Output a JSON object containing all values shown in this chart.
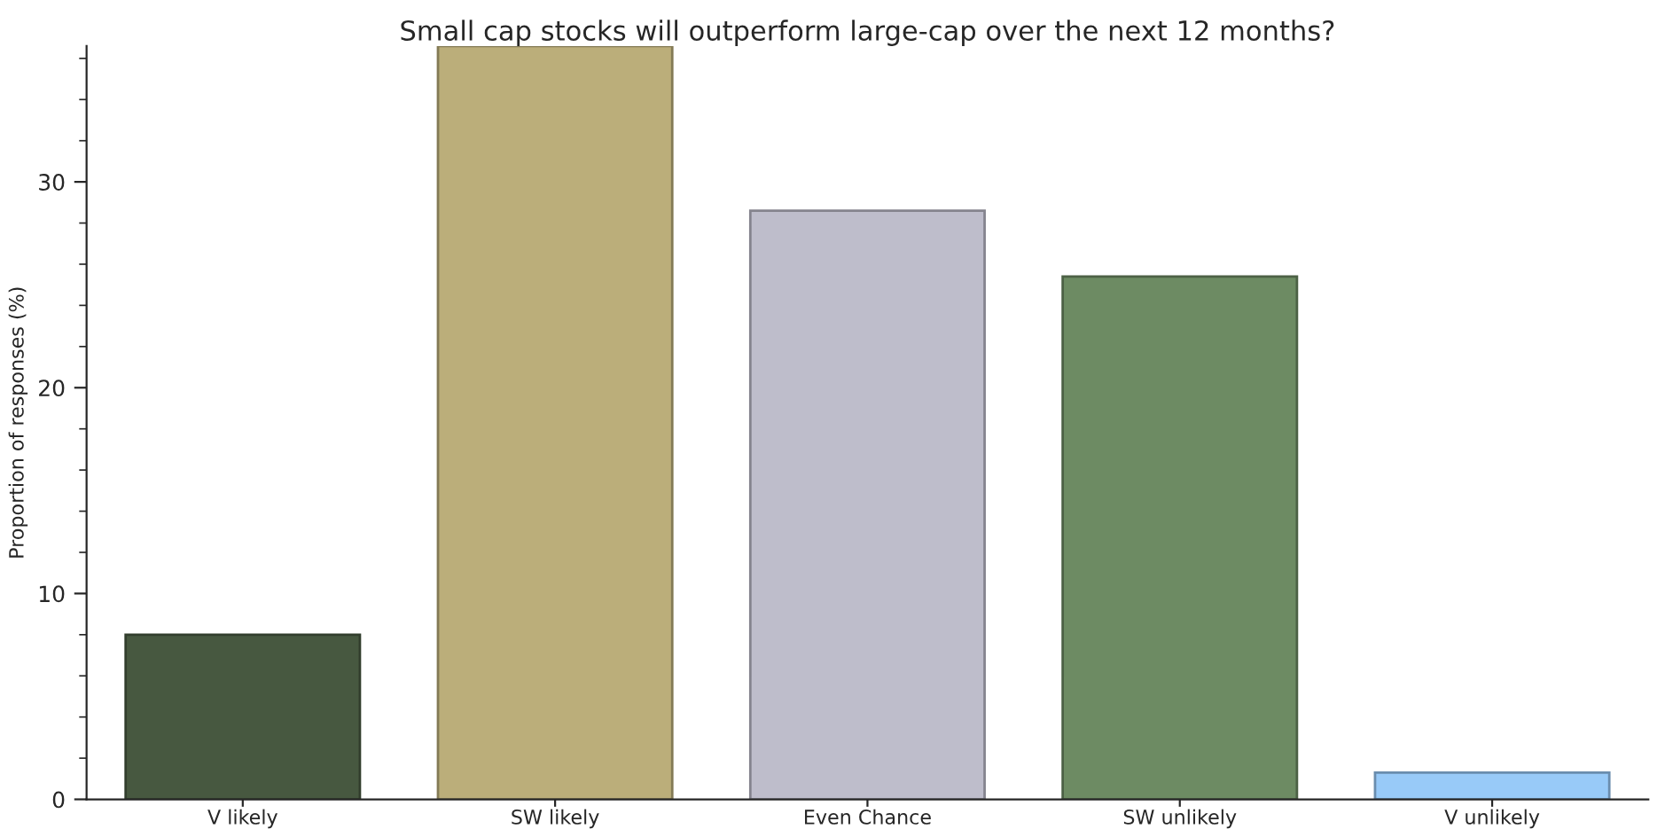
{
  "chart_data": {
    "type": "bar",
    "title": "Small cap stocks will outperform large-cap over the next 12 months?",
    "ylabel": "Proportion of responses (%)",
    "categories": [
      "V likely",
      "SW likely",
      "Even Chance",
      "SW unlikely",
      "V unlikely"
    ],
    "values": [
      8.0,
      36.6,
      28.6,
      25.4,
      1.3
    ],
    "colors": [
      "#475840",
      "#bbae7a",
      "#bebdcb",
      "#6d8b63",
      "#98caf8"
    ],
    "ylim": [
      0,
      36.6
    ],
    "yticks": [
      0,
      {
        "value": 2,
        "label": null
      },
      {
        "value": 4,
        "label": null
      },
      {
        "value": 6,
        "label": null
      },
      {
        "value": 8,
        "label": null
      },
      10,
      {
        "value": 12,
        "label": null
      },
      {
        "value": 14,
        "label": null
      },
      {
        "value": 16,
        "label": null
      },
      {
        "value": 18,
        "label": null
      },
      20,
      {
        "value": 22,
        "label": null
      },
      {
        "value": 24,
        "label": null
      },
      {
        "value": 26,
        "label": null
      },
      {
        "value": 28,
        "label": null
      },
      30,
      {
        "value": 32,
        "label": null
      },
      {
        "value": 34,
        "label": null
      },
      {
        "value": 36,
        "label": null
      }
    ],
    "grid": false,
    "legend": false
  }
}
